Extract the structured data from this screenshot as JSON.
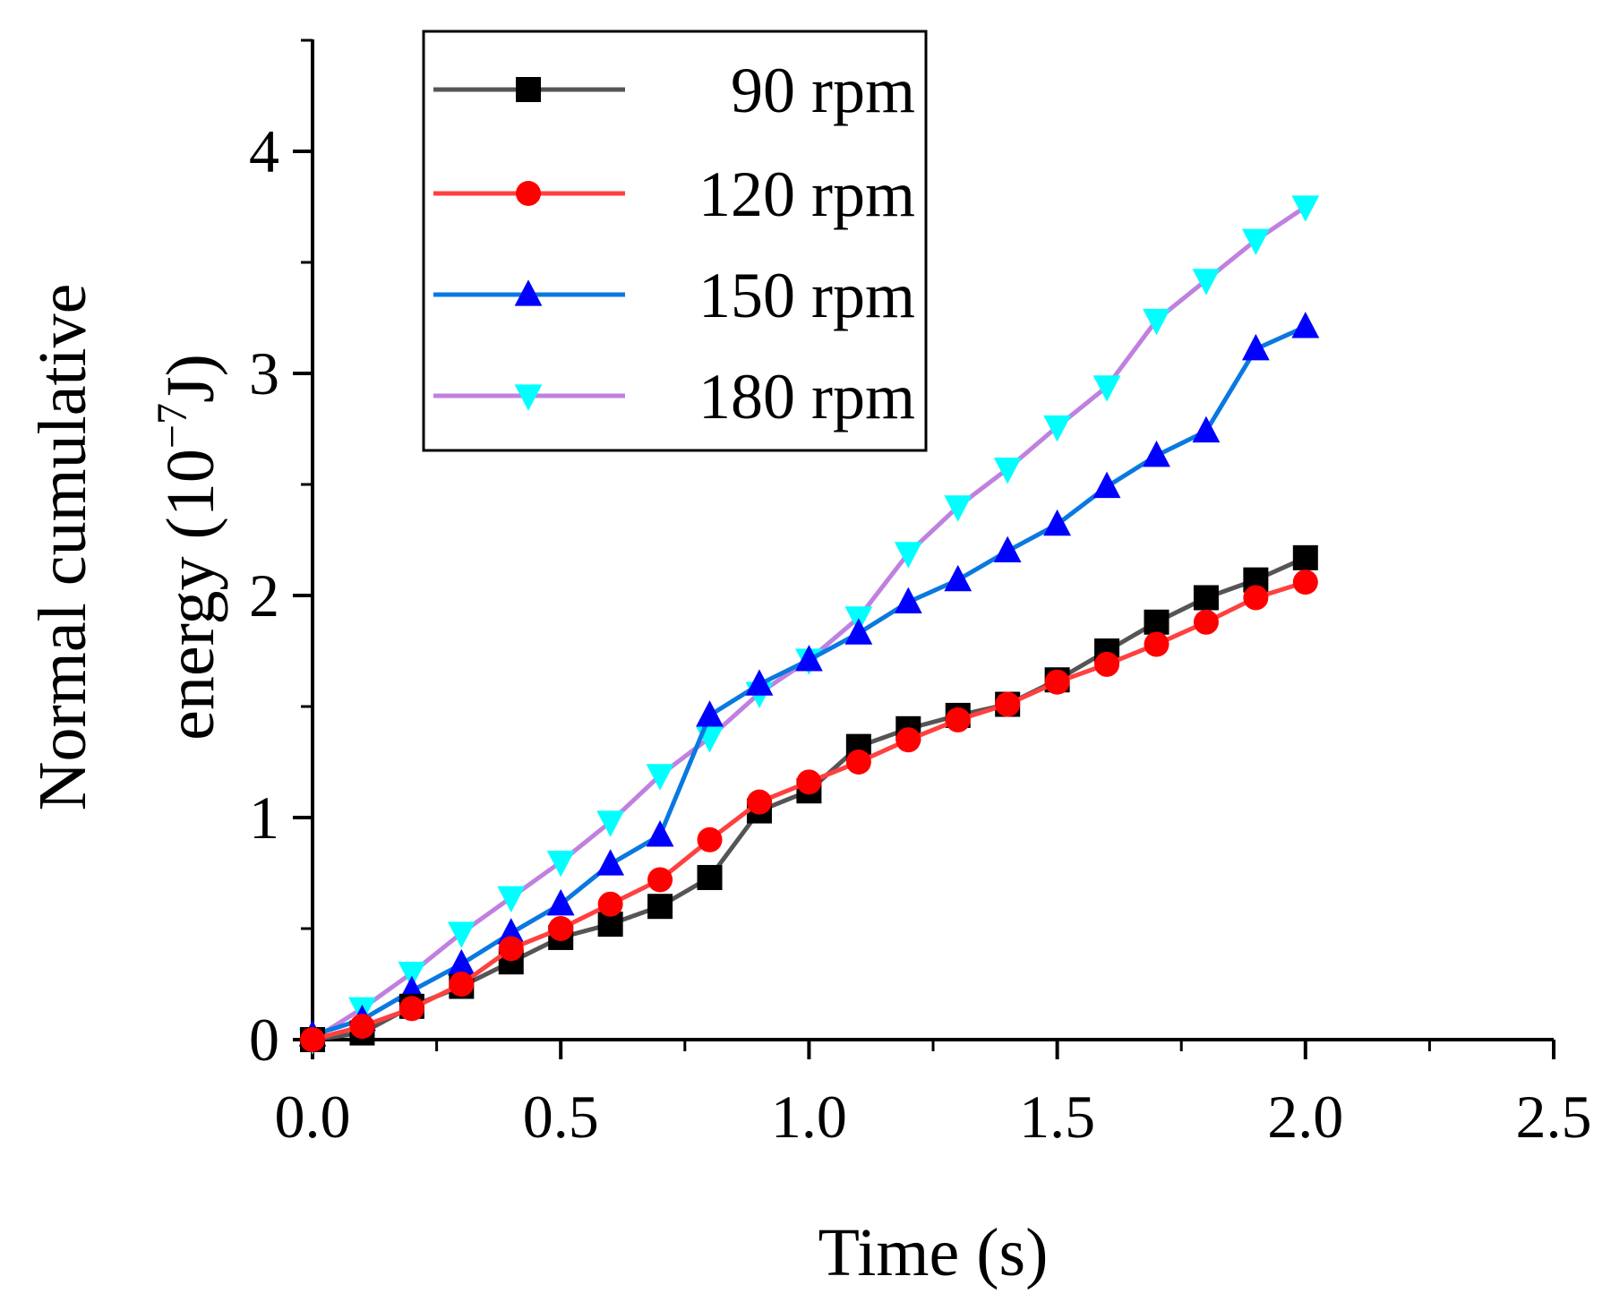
{
  "chart_data": {
    "type": "line",
    "title": "",
    "xlabel": "Time (s)",
    "ylabel_line1": "Normal cumulative",
    "ylabel_line2_prefix": "energy (10",
    "ylabel_exponent": "−7",
    "ylabel_line2_suffix": "J)",
    "xlim": [
      0,
      2.5
    ],
    "ylim": [
      0,
      4.5
    ],
    "xticks": [
      "0.0",
      "0.5",
      "1.0",
      "1.5",
      "2.0",
      "2.5"
    ],
    "xtick_values": [
      0,
      0.5,
      1.0,
      1.5,
      2.0,
      2.5
    ],
    "yticks": [
      "0",
      "1",
      "2",
      "3",
      "4"
    ],
    "ytick_values": [
      0,
      1,
      2,
      3,
      4
    ],
    "grid": false,
    "legend_position": "top-left",
    "x": [
      0,
      0.1,
      0.2,
      0.3,
      0.4,
      0.5,
      0.6,
      0.7,
      0.8,
      0.9,
      1.0,
      1.1,
      1.2,
      1.3,
      1.4,
      1.5,
      1.6,
      1.7,
      1.8,
      1.9,
      2.0
    ],
    "series": [
      {
        "name": "90 rpm",
        "line_color": "#555555",
        "marker_color": "#000000",
        "marker": "square",
        "values": [
          0,
          0.03,
          0.15,
          0.24,
          0.35,
          0.46,
          0.52,
          0.6,
          0.73,
          1.03,
          1.12,
          1.32,
          1.4,
          1.46,
          1.51,
          1.62,
          1.75,
          1.88,
          1.99,
          2.07,
          2.17
        ]
      },
      {
        "name": "120 rpm",
        "line_color": "#ff4040",
        "marker_color": "#ff0000",
        "marker": "circle",
        "values": [
          0,
          0.06,
          0.14,
          0.25,
          0.41,
          0.5,
          0.61,
          0.72,
          0.9,
          1.07,
          1.16,
          1.25,
          1.35,
          1.44,
          1.51,
          1.61,
          1.69,
          1.78,
          1.88,
          1.99,
          2.06
        ]
      },
      {
        "name": "150 rpm",
        "line_color": "#0a78e0",
        "marker_color": "#0000ff",
        "marker": "triangle-up",
        "values": [
          0.02,
          0.09,
          0.22,
          0.34,
          0.48,
          0.61,
          0.79,
          0.92,
          1.46,
          1.6,
          1.71,
          1.83,
          1.97,
          2.07,
          2.2,
          2.32,
          2.49,
          2.63,
          2.74,
          3.11,
          3.21
        ]
      },
      {
        "name": "180 rpm",
        "line_color": "#c080e0",
        "marker_color": "#00ffff",
        "marker": "triangle-down",
        "values": [
          0,
          0.14,
          0.3,
          0.48,
          0.64,
          0.8,
          0.98,
          1.19,
          1.36,
          1.56,
          1.71,
          1.9,
          2.19,
          2.4,
          2.57,
          2.76,
          2.94,
          3.24,
          3.42,
          3.6,
          3.75
        ]
      }
    ]
  }
}
